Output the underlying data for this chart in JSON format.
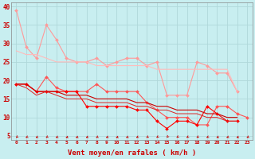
{
  "background_color": "#c8eef0",
  "grid_color": "#b0d8da",
  "xlabel": "Vent moyen/en rafales ( km/h )",
  "x_ticks": [
    0,
    1,
    2,
    3,
    4,
    5,
    6,
    7,
    8,
    9,
    10,
    11,
    12,
    13,
    14,
    15,
    16,
    17,
    18,
    19,
    20,
    21,
    22,
    23
  ],
  "ylim": [
    4,
    41
  ],
  "yticks": [
    5,
    10,
    15,
    20,
    25,
    30,
    35,
    40
  ],
  "line1": {
    "color": "#ff9999",
    "values": [
      39,
      29,
      26,
      35,
      31,
      26,
      25,
      25,
      26,
      24,
      25,
      26,
      26,
      24,
      25,
      16,
      16,
      16,
      25,
      24,
      22,
      22,
      17
    ],
    "marker": "D",
    "markersize": 2.0,
    "linewidth": 0.8
  },
  "line2": {
    "color": "#ffbbbb",
    "values": [
      28,
      27,
      27,
      26,
      25,
      25,
      25,
      25,
      24,
      24,
      24,
      24,
      24,
      24,
      23,
      23,
      23,
      23,
      23,
      23,
      23,
      23,
      17
    ],
    "marker": null,
    "linewidth": 0.8
  },
  "line3": {
    "color": "#ff5555",
    "values": [
      19,
      19,
      17,
      21,
      18,
      17,
      17,
      17,
      19,
      17,
      17,
      17,
      17,
      14,
      12,
      10,
      10,
      10,
      8,
      8,
      13,
      13,
      11,
      10
    ],
    "marker": "D",
    "markersize": 2.0,
    "linewidth": 0.8
  },
  "line4": {
    "color": "#ff0000",
    "values": [
      19,
      19,
      17,
      17,
      17,
      17,
      17,
      13,
      13,
      13,
      13,
      13,
      12,
      12,
      9,
      7,
      9,
      9,
      8,
      13,
      11,
      9,
      9
    ],
    "marker": "D",
    "markersize": 2.0,
    "linewidth": 0.8
  },
  "line5": {
    "color": "#cc0000",
    "values": [
      19,
      19,
      17,
      17,
      17,
      16,
      16,
      16,
      15,
      15,
      15,
      15,
      14,
      14,
      13,
      13,
      12,
      12,
      12,
      11,
      11,
      10,
      10
    ],
    "marker": null,
    "linewidth": 0.8
  },
  "line6": {
    "color": "#dd2222",
    "values": [
      19,
      18,
      16,
      17,
      16,
      15,
      15,
      15,
      14,
      14,
      14,
      14,
      13,
      13,
      12,
      12,
      11,
      11,
      11,
      10,
      10,
      9,
      9
    ],
    "marker": null,
    "linewidth": 0.7
  },
  "arrow_color": "#cc0000",
  "arrow_angles": [
    210,
    220,
    225,
    215,
    225,
    230,
    230,
    225,
    220,
    225,
    230,
    225,
    220,
    215,
    210,
    200,
    210,
    215,
    215,
    220,
    225,
    225,
    230,
    220
  ]
}
